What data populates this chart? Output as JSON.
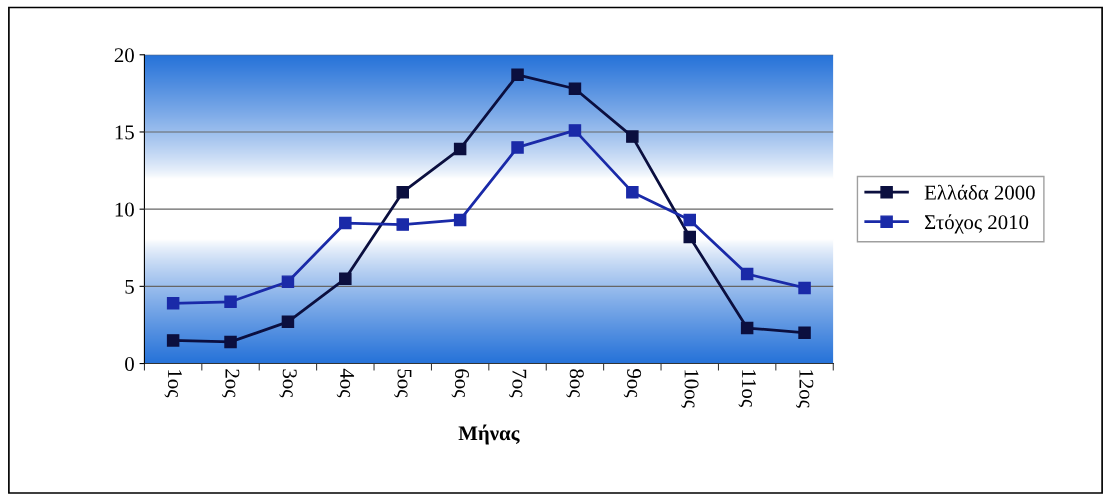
{
  "chart_data": {
    "type": "line",
    "xlabel": "Μήνας",
    "categories": [
      "1ος",
      "2ος",
      "3ος",
      "4ος",
      "5ος",
      "6ος",
      "7ος",
      "8ος",
      "9ος",
      "10ος",
      "11ος",
      "12ος"
    ],
    "series": [
      {
        "name": "Ελλάδα 2000",
        "color": "#0b0f3f",
        "values": [
          1.5,
          1.4,
          2.7,
          5.5,
          11.1,
          13.9,
          18.7,
          17.8,
          14.7,
          8.2,
          2.3,
          2.0
        ]
      },
      {
        "name": "Στόχος 2010",
        "color": "#1a2aa8",
        "values": [
          3.9,
          4.0,
          5.3,
          9.1,
          9.0,
          9.3,
          14.0,
          15.1,
          11.1,
          9.3,
          5.8,
          4.9
        ]
      }
    ],
    "ylim": [
      0,
      20
    ],
    "yticks": [
      0,
      5,
      10,
      15,
      20
    ],
    "grid": "y",
    "legend": "right",
    "marker": "square",
    "line_style": "solid"
  }
}
